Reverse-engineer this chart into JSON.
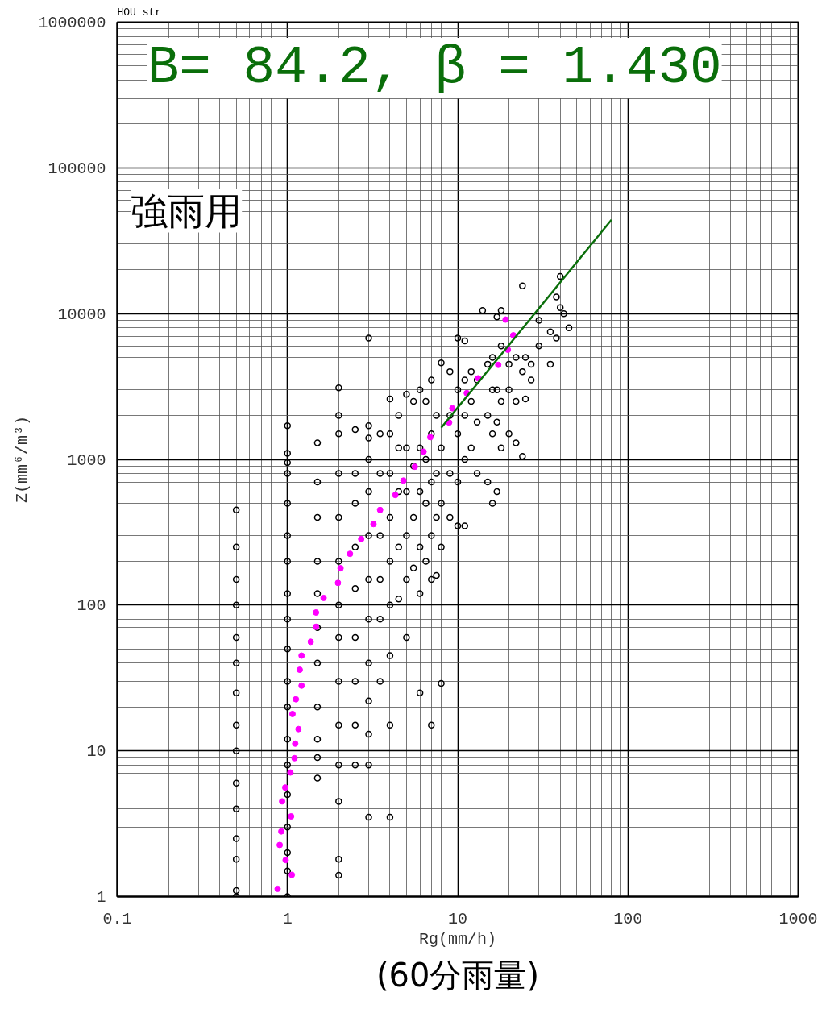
{
  "chart_data": {
    "type": "scatter",
    "xlabel": "Rg(mm/h)",
    "ylabel": "Z(mm⁶/m³)",
    "annotations": [
      "HOU str",
      "B= 84.2, β = 1.430",
      "強雨用",
      "(60分雨量)"
    ],
    "log": "xy",
    "grid": true,
    "xlim": [
      0.1,
      1000
    ],
    "ylim": [
      1,
      1000000
    ],
    "xticks": [
      0.1,
      1,
      10,
      100,
      1000
    ],
    "yticks": [
      1,
      10,
      100,
      1000,
      10000,
      100000,
      1000000
    ],
    "series": [
      {
        "marker": "circle",
        "color": "#000000",
        "x": [
          0.5,
          0.5,
          0.5,
          0.5,
          0.5,
          0.5,
          0.5,
          0.5,
          0.5,
          0.5,
          0.5,
          0.5,
          0.5,
          0.5,
          0.5,
          1,
          1,
          1,
          1,
          1,
          1,
          1,
          1,
          1,
          1,
          1,
          1,
          1,
          1,
          1,
          1,
          1,
          1,
          1,
          1.5,
          1.5,
          1.5,
          1.5,
          1.5,
          1.5,
          1.5,
          1.5,
          1.5,
          1.5,
          1.5,
          2,
          2,
          2,
          2,
          2,
          2,
          2,
          2,
          2,
          2,
          2,
          2,
          2,
          2,
          2.5,
          2.5,
          2.5,
          2.5,
          2.5,
          2.5,
          2.5,
          2.5,
          2.5,
          3,
          3,
          3,
          3,
          3,
          3,
          3,
          3,
          3,
          3,
          3,
          3,
          3,
          3.5,
          3.5,
          3.5,
          3.5,
          3.5,
          3.5,
          4,
          4,
          4,
          4,
          4,
          4,
          4,
          4,
          4,
          4.5,
          4.5,
          4.5,
          4.5,
          4.5,
          5,
          5,
          5,
          5,
          5,
          5,
          5.5,
          5.5,
          5.5,
          5.5,
          6,
          6,
          6,
          6,
          6,
          6,
          6.5,
          6.5,
          6.5,
          6.5,
          7,
          7,
          7,
          7,
          7,
          7,
          7.5,
          7.5,
          7.5,
          7.5,
          8,
          8,
          8,
          8,
          8,
          9,
          9,
          9,
          9,
          10,
          10,
          10,
          10,
          10,
          11,
          11,
          11,
          11,
          11,
          12,
          12,
          12,
          13,
          13,
          13,
          14,
          15,
          15,
          15,
          16,
          16,
          16,
          16,
          17,
          17,
          17,
          17,
          18,
          18,
          18,
          18,
          20,
          20,
          20,
          22,
          22,
          22,
          24,
          24,
          24,
          25,
          25,
          27,
          27,
          30,
          30,
          35,
          35,
          38,
          38,
          40,
          40,
          42,
          45
        ],
        "values": [
          1,
          1.1,
          1.8,
          2.5,
          4,
          6,
          10,
          15,
          25,
          40,
          60,
          100,
          150,
          250,
          450,
          1,
          1.5,
          2,
          3,
          5,
          8,
          12,
          20,
          30,
          50,
          80,
          120,
          200,
          300,
          500,
          800,
          950,
          1100,
          1700,
          6.5,
          9,
          12,
          20,
          40,
          70,
          120,
          200,
          400,
          700,
          1300,
          1.4,
          1.8,
          4.5,
          8,
          15,
          30,
          60,
          100,
          200,
          400,
          800,
          1500,
          2000,
          3100,
          8,
          15,
          30,
          60,
          130,
          250,
          500,
          800,
          1600,
          3.5,
          8,
          13,
          22,
          40,
          80,
          150,
          300,
          600,
          1000,
          1400,
          1700,
          6800,
          30,
          80,
          150,
          300,
          800,
          1500,
          3.5,
          15,
          45,
          100,
          200,
          400,
          800,
          1500,
          2600,
          110,
          250,
          600,
          1200,
          2000,
          60,
          150,
          300,
          600,
          1200,
          2800,
          180,
          400,
          900,
          2500,
          25,
          120,
          250,
          600,
          1200,
          3000,
          200,
          500,
          1000,
          2500,
          15,
          150,
          300,
          700,
          1500,
          3500,
          160,
          400,
          800,
          2000,
          29,
          250,
          500,
          1200,
          4600,
          400,
          800,
          2000,
          4000,
          350,
          700,
          1500,
          3000,
          6800,
          350,
          1000,
          2000,
          3500,
          6500,
          1200,
          2500,
          4000,
          800,
          1800,
          3500,
          10500,
          700,
          2000,
          4500,
          500,
          1500,
          3000,
          5000,
          600,
          1800,
          3000,
          9500,
          1200,
          2500,
          6000,
          10500,
          1500,
          3000,
          4500,
          1300,
          2500,
          5000,
          1050,
          4000,
          15500,
          2600,
          5000,
          3500,
          4500,
          6000,
          9000,
          4500,
          7500,
          13000,
          6800,
          18000,
          11000,
          10000,
          8000
        ]
      },
      {
        "marker": "circle",
        "color": "#ff00ff",
        "x": [
          0.875,
          1.06,
          0.975,
          0.9,
          0.92,
          1.05,
          0.93,
          0.97,
          1.04,
          1.1,
          1.11,
          1.16,
          1.07,
          1.12,
          1.21,
          1.18,
          1.21,
          1.37,
          1.47,
          1.47,
          1.63,
          1.98,
          2.05,
          2.33,
          2.71,
          3.2,
          3.5,
          4.3,
          4.8,
          5.6,
          6.3,
          6.9,
          8.9,
          9.3,
          11.3,
          13.2,
          17.3,
          19.7,
          21.2,
          19.1
        ],
        "values": [
          1.13,
          1.41,
          1.78,
          2.26,
          2.8,
          3.55,
          4.5,
          5.6,
          7.1,
          8.9,
          11.2,
          14.1,
          17.9,
          22.6,
          28,
          36,
          45,
          56,
          71,
          89,
          112,
          142,
          179,
          225,
          284,
          360,
          450,
          570,
          715,
          890,
          1130,
          1420,
          1790,
          2240,
          2850,
          3600,
          4450,
          5650,
          7100,
          9100
        ]
      },
      {
        "type": "line",
        "marker": "none",
        "line_style": "solid",
        "color": "#0a6e0a",
        "x": [
          8,
          80
        ],
        "values": [
          1650,
          44000
        ]
      }
    ]
  }
}
